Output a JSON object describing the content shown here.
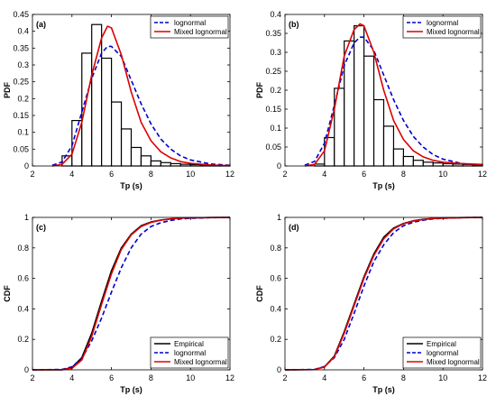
{
  "colors": {
    "histogram": "#000000",
    "lognormal": "#0000cc",
    "mixed": "#dd0000",
    "empirical": "#000000",
    "axis": "#000000",
    "background": "#ffffff"
  },
  "chart_data": [
    {
      "type": "bar",
      "panel_label": "(a)",
      "xlabel": "Tp (s)",
      "ylabel": "PDF",
      "xlim": [
        2,
        12
      ],
      "ylim": [
        0,
        0.45
      ],
      "xticks": [
        2,
        4,
        6,
        8,
        10,
        12
      ],
      "yticks": [
        0,
        0.05,
        0.1,
        0.15,
        0.2,
        0.25,
        0.3,
        0.35,
        0.4,
        0.45
      ],
      "ytick_labels": [
        "0",
        "0.05",
        "0.1",
        "0.15",
        "0.2",
        "0.25",
        "0.3",
        "0.35",
        "0.4",
        "0.45"
      ],
      "legend_position": "top-right",
      "bars": {
        "bin_edges": [
          3.5,
          4.0,
          4.5,
          5.0,
          5.5,
          6.0,
          6.5,
          7.0,
          7.5,
          8.0,
          8.5,
          9.0,
          9.5,
          10.0,
          10.5,
          11.0,
          11.5,
          12.0
        ],
        "values": [
          0.03,
          0.135,
          0.335,
          0.42,
          0.32,
          0.19,
          0.11,
          0.055,
          0.03,
          0.015,
          0.01,
          0.007,
          0.005,
          0.004,
          0.003,
          0.002,
          0.001
        ]
      },
      "series": [
        {
          "name": "lognormal",
          "style": "dashed",
          "color": "#0000cc",
          "x": [
            3.0,
            3.5,
            4.0,
            4.5,
            5.0,
            5.5,
            5.8,
            6.0,
            6.5,
            7.0,
            7.5,
            8.0,
            8.5,
            9.0,
            9.5,
            10.0,
            11.0,
            12.0
          ],
          "y": [
            0.002,
            0.012,
            0.06,
            0.16,
            0.26,
            0.335,
            0.355,
            0.355,
            0.325,
            0.255,
            0.185,
            0.125,
            0.08,
            0.05,
            0.03,
            0.018,
            0.006,
            0.002
          ]
        },
        {
          "name": "Mixed lognormal",
          "style": "solid",
          "color": "#dd0000",
          "x": [
            3.0,
            3.5,
            4.0,
            4.5,
            5.0,
            5.5,
            5.8,
            6.0,
            6.5,
            7.0,
            7.5,
            8.0,
            8.5,
            9.0,
            9.5,
            10.0,
            11.0,
            12.0
          ],
          "y": [
            0.0,
            0.005,
            0.035,
            0.13,
            0.27,
            0.38,
            0.415,
            0.41,
            0.33,
            0.22,
            0.13,
            0.075,
            0.042,
            0.024,
            0.013,
            0.008,
            0.003,
            0.001
          ]
        }
      ]
    },
    {
      "type": "bar",
      "panel_label": "(b)",
      "xlabel": "Tp (s)",
      "ylabel": "PDF",
      "xlim": [
        2,
        12
      ],
      "ylim": [
        0,
        0.4
      ],
      "xticks": [
        2,
        4,
        6,
        8,
        10,
        12
      ],
      "yticks": [
        0,
        0.05,
        0.1,
        0.15,
        0.2,
        0.25,
        0.3,
        0.35,
        0.4
      ],
      "ytick_labels": [
        "0",
        "0.05",
        "0.1",
        "0.15",
        "0.2",
        "0.25",
        "0.3",
        "0.35",
        "0.4"
      ],
      "legend_position": "top-right",
      "bars": {
        "bin_edges": [
          3.5,
          4.0,
          4.5,
          5.0,
          5.5,
          6.0,
          6.5,
          7.0,
          7.5,
          8.0,
          8.5,
          9.0,
          9.5,
          10.0,
          10.5,
          11.0,
          11.5,
          12.0
        ],
        "values": [
          0.005,
          0.075,
          0.205,
          0.33,
          0.37,
          0.29,
          0.175,
          0.105,
          0.045,
          0.025,
          0.015,
          0.01,
          0.008,
          0.006,
          0.005,
          0.004,
          0.003
        ]
      },
      "series": [
        {
          "name": "lognormal",
          "style": "dashed",
          "color": "#0000cc",
          "x": [
            3.0,
            3.5,
            4.0,
            4.5,
            5.0,
            5.5,
            5.8,
            6.0,
            6.5,
            7.0,
            7.5,
            8.0,
            8.5,
            9.0,
            9.5,
            10.0,
            11.0,
            12.0
          ],
          "y": [
            0.002,
            0.012,
            0.06,
            0.16,
            0.265,
            0.325,
            0.34,
            0.34,
            0.305,
            0.24,
            0.175,
            0.12,
            0.078,
            0.05,
            0.03,
            0.018,
            0.006,
            0.002
          ]
        },
        {
          "name": "Mixed lognormal",
          "style": "solid",
          "color": "#dd0000",
          "x": [
            3.0,
            3.5,
            4.0,
            4.5,
            5.0,
            5.5,
            5.8,
            6.0,
            6.5,
            7.0,
            7.5,
            8.0,
            8.5,
            9.0,
            9.5,
            10.0,
            11.0,
            12.0
          ],
          "y": [
            0.0,
            0.004,
            0.04,
            0.15,
            0.29,
            0.36,
            0.375,
            0.37,
            0.3,
            0.2,
            0.12,
            0.07,
            0.04,
            0.024,
            0.015,
            0.01,
            0.006,
            0.004
          ]
        }
      ]
    },
    {
      "type": "line",
      "panel_label": "(c)",
      "xlabel": "Tp (s)",
      "ylabel": "CDF",
      "xlim": [
        2,
        12
      ],
      "ylim": [
        0,
        1
      ],
      "xticks": [
        2,
        4,
        6,
        8,
        10,
        12
      ],
      "yticks": [
        0,
        0.2,
        0.4,
        0.6,
        0.8,
        1
      ],
      "ytick_labels": [
        "0",
        "0.2",
        "0.4",
        "0.6",
        "0.8",
        "1"
      ],
      "legend_position": "bottom-right",
      "series": [
        {
          "name": "Empirical",
          "style": "solid",
          "color": "#000000",
          "x": [
            2,
            3.5,
            4.0,
            4.5,
            5.0,
            5.5,
            6.0,
            6.5,
            7.0,
            7.5,
            8.0,
            8.5,
            9.0,
            9.5,
            10.0,
            11.0,
            12.0
          ],
          "y": [
            0,
            0.0,
            0.015,
            0.08,
            0.24,
            0.45,
            0.65,
            0.8,
            0.89,
            0.945,
            0.97,
            0.983,
            0.99,
            0.995,
            0.997,
            0.999,
            1.0
          ]
        },
        {
          "name": "lognormal",
          "style": "dashed",
          "color": "#0000cc",
          "x": [
            2,
            3.5,
            4.0,
            4.5,
            5.0,
            5.5,
            6.0,
            6.5,
            7.0,
            7.5,
            8.0,
            8.5,
            9.0,
            9.5,
            10.0,
            11.0,
            12.0
          ],
          "y": [
            0,
            0.003,
            0.02,
            0.075,
            0.19,
            0.34,
            0.51,
            0.67,
            0.8,
            0.89,
            0.94,
            0.965,
            0.98,
            0.99,
            0.994,
            0.998,
            1.0
          ]
        },
        {
          "name": "Mixed lognormal",
          "style": "solid",
          "color": "#dd0000",
          "x": [
            2,
            3.5,
            4.0,
            4.5,
            5.0,
            5.5,
            6.0,
            6.5,
            7.0,
            7.5,
            8.0,
            8.5,
            9.0,
            9.5,
            10.0,
            11.0,
            12.0
          ],
          "y": [
            0,
            0.001,
            0.01,
            0.065,
            0.22,
            0.43,
            0.63,
            0.79,
            0.885,
            0.94,
            0.967,
            0.982,
            0.99,
            0.995,
            0.997,
            0.999,
            1.0
          ]
        }
      ]
    },
    {
      "type": "line",
      "panel_label": "(d)",
      "xlabel": "Tp (s)",
      "ylabel": "CDF",
      "xlim": [
        2,
        12
      ],
      "ylim": [
        0,
        1
      ],
      "xticks": [
        2,
        4,
        6,
        8,
        10,
        12
      ],
      "yticks": [
        0,
        0.2,
        0.4,
        0.6,
        0.8,
        1
      ],
      "ytick_labels": [
        "0",
        "0.2",
        "0.4",
        "0.6",
        "0.8",
        "1"
      ],
      "legend_position": "bottom-right",
      "series": [
        {
          "name": "Empirical",
          "style": "solid",
          "color": "#000000",
          "x": [
            2,
            3.5,
            4.0,
            4.5,
            5.0,
            5.5,
            6.0,
            6.5,
            7.0,
            7.5,
            8.0,
            8.5,
            9.0,
            9.5,
            10.0,
            11.0,
            12.0
          ],
          "y": [
            0,
            0.002,
            0.02,
            0.09,
            0.25,
            0.43,
            0.61,
            0.76,
            0.87,
            0.93,
            0.96,
            0.978,
            0.987,
            0.993,
            0.996,
            0.999,
            1.0
          ]
        },
        {
          "name": "lognormal",
          "style": "dashed",
          "color": "#0000cc",
          "x": [
            2,
            3.5,
            4.0,
            4.5,
            5.0,
            5.5,
            6.0,
            6.5,
            7.0,
            7.5,
            8.0,
            8.5,
            9.0,
            9.5,
            10.0,
            11.0,
            12.0
          ],
          "y": [
            0,
            0.003,
            0.022,
            0.08,
            0.2,
            0.37,
            0.55,
            0.71,
            0.82,
            0.9,
            0.945,
            0.968,
            0.982,
            0.99,
            0.994,
            0.998,
            1.0
          ]
        },
        {
          "name": "Mixed lognormal",
          "style": "solid",
          "color": "#dd0000",
          "x": [
            2,
            3.5,
            4.0,
            4.5,
            5.0,
            5.5,
            6.0,
            6.5,
            7.0,
            7.5,
            8.0,
            8.5,
            9.0,
            9.5,
            10.0,
            11.0,
            12.0
          ],
          "y": [
            0,
            0.002,
            0.018,
            0.085,
            0.24,
            0.42,
            0.6,
            0.75,
            0.86,
            0.925,
            0.958,
            0.976,
            0.986,
            0.992,
            0.995,
            0.998,
            1.0
          ]
        }
      ]
    }
  ]
}
